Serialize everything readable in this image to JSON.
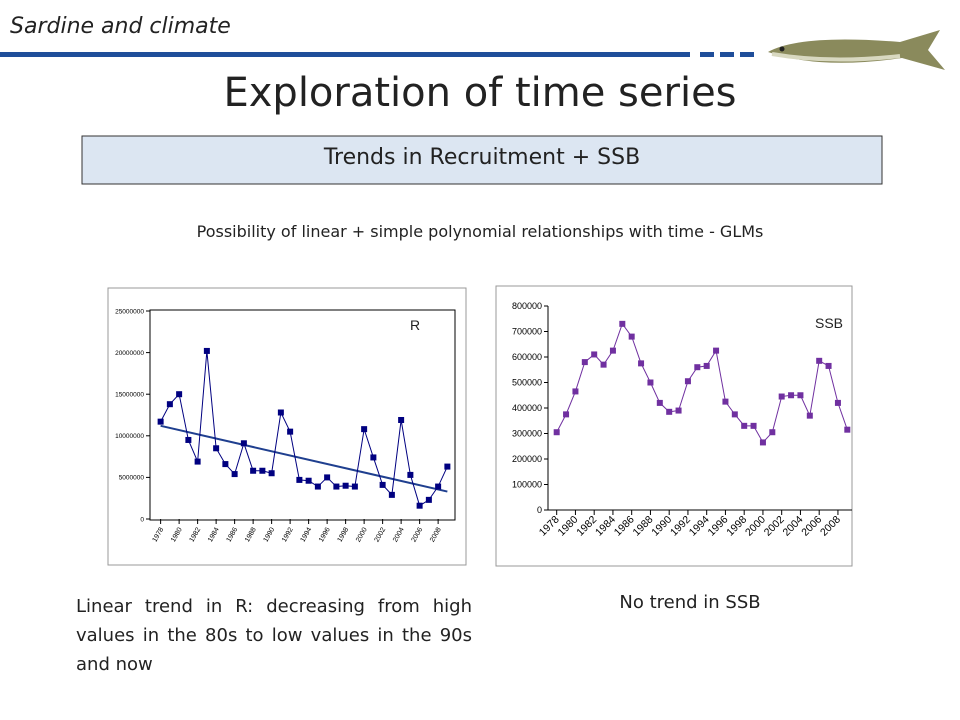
{
  "header": {
    "section": "Sardine and climate",
    "title": "Exploration of time series",
    "box": "Trends in Recruitment + SSB",
    "subtitle": "Possibility of linear + simple polynomial relationships with time - GLMs"
  },
  "captions": {
    "left": "Linear trend in R: decreasing from high values in the 80s to low values in the 90s and now",
    "right": "No trend in SSB"
  },
  "chart_data": [
    {
      "type": "line",
      "x": [
        1978,
        1979,
        1980,
        1981,
        1982,
        1983,
        1984,
        1985,
        1986,
        1987,
        1988,
        1989,
        1990,
        1991,
        1992,
        1993,
        1994,
        1995,
        1996,
        1997,
        1998,
        1999,
        2000,
        2001,
        2002,
        2003,
        2004,
        2005,
        2006,
        2007,
        2008,
        2009
      ],
      "series": [
        {
          "name": "R",
          "color": "#000080",
          "values": [
            11700000,
            13800000,
            15000000,
            9500000,
            6900000,
            20200000,
            8500000,
            6600000,
            5400000,
            9100000,
            5800000,
            5800000,
            5500000,
            12800000,
            10500000,
            4700000,
            4600000,
            3900000,
            5000000,
            3900000,
            4000000,
            3900000,
            10800000,
            7400000,
            4100000,
            2900000,
            11900000,
            5300000,
            1600000,
            2300000,
            3900000,
            6300000
          ]
        }
      ],
      "trend": {
        "x": [
          1978,
          2009
        ],
        "values": [
          11200000,
          3300000
        ],
        "color": "#1f3f8f"
      },
      "xlim": [
        1977.5,
        2009.5
      ],
      "xticks": [
        1978,
        1980,
        1982,
        1984,
        1986,
        1988,
        1990,
        1992,
        1994,
        1996,
        1998,
        2000,
        2002,
        2004,
        2006,
        2008
      ],
      "ylim": [
        0,
        25000000
      ],
      "yticks": [
        0,
        5000000,
        10000000,
        15000000,
        20000000,
        25000000
      ]
    },
    {
      "type": "line",
      "x": [
        1978,
        1979,
        1980,
        1981,
        1982,
        1983,
        1984,
        1985,
        1986,
        1987,
        1988,
        1989,
        1990,
        1991,
        1992,
        1993,
        1994,
        1995,
        1996,
        1997,
        1998,
        1999,
        2000,
        2001,
        2002,
        2003,
        2004,
        2005,
        2006,
        2007,
        2008,
        2009
      ],
      "series": [
        {
          "name": "SSB",
          "color": "#7030a0",
          "values": [
            305000,
            375000,
            465000,
            580000,
            610000,
            570000,
            625000,
            730000,
            680000,
            575000,
            500000,
            420000,
            385000,
            390000,
            505000,
            560000,
            565000,
            625000,
            425000,
            375000,
            330000,
            330000,
            265000,
            305000,
            445000,
            450000,
            450000,
            370000,
            585000,
            565000,
            420000,
            315000
          ]
        }
      ],
      "xlim": [
        1977.5,
        2009.5
      ],
      "xticks": [
        1978,
        1980,
        1982,
        1984,
        1986,
        1988,
        1990,
        1992,
        1994,
        1996,
        1998,
        2000,
        2002,
        2004,
        2006,
        2008
      ],
      "ylim": [
        0,
        800000
      ],
      "yticks": [
        0,
        100000,
        200000,
        300000,
        400000,
        500000,
        600000,
        700000,
        800000
      ]
    }
  ]
}
